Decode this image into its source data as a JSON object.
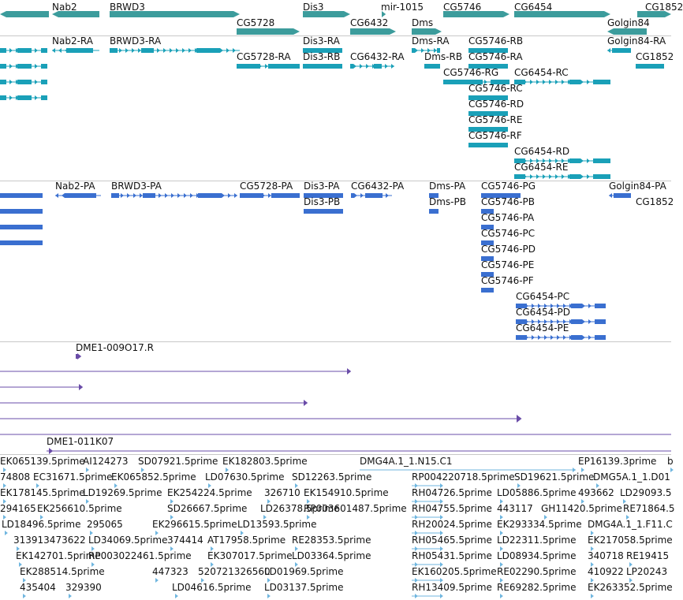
{
  "colors": {
    "gene": "#3c9c9c",
    "transcript": "#1aa0b8",
    "protein": "#3a6fd0",
    "clone": "#6a4ca8",
    "est": "#6fb6df",
    "separator": "#c8c8c8"
  },
  "genes": [
    "Nab2",
    "BRWD3",
    "Dis3",
    "mir-1015",
    "CG5746",
    "CG6454",
    "CG1852",
    "CG5728",
    "CG6432",
    "Dms",
    "Golgin84"
  ],
  "transcripts": [
    "Nab2-RA",
    "BRWD3-RA",
    "Dis3-RA",
    "Dms-RA",
    "CG5746-RB",
    "Golgin84-RA",
    "CG5728-RA",
    "Dis3-RB",
    "CG6432-RA",
    "Dms-RB",
    "CG5746-RA",
    "CG1852",
    "CG5746-RG",
    "CG6454-RC",
    "CG5746-RC",
    "CG5746-RD",
    "CG5746-RE",
    "CG5746-RF",
    "CG6454-RD",
    "CG6454-RE"
  ],
  "proteins": [
    "Nab2-PA",
    "BRWD3-PA",
    "CG5728-PA",
    "Dis3-PA",
    "CG6432-PA",
    "Dms-PA",
    "CG5746-PG",
    "Golgin84-PA",
    "Dis3-PB",
    "Dms-PB",
    "CG5746-PB",
    "CG1852",
    "CG5746-PA",
    "CG5746-PC",
    "CG5746-PD",
    "CG5746-PE",
    "CG5746-PF",
    "CG6454-PC",
    "CG6454-PD",
    "CG6454-PE"
  ],
  "clones": [
    "DME1-009O17.R",
    "DME1-011K07"
  ],
  "ests": [
    [
      "EK065139.5prime",
      "AI124273",
      "SD07921.5prime",
      "EK182803.5prime",
      "DMG4A.1_1.N15.C1",
      "EP16139.3prime",
      "b"
    ],
    [
      "74808",
      "EC31671.5prime",
      "EK065852.5prime",
      "LD07630.5prime",
      "SD12263.5prime",
      "RP004220718.5prime",
      "SD19621.5prime",
      "DMG5A.1_1.D01"
    ],
    [
      "EK178145.5prime",
      "LD19269.5prime",
      "EK254224.5prime",
      "326710",
      "EK154910.5prime",
      "RH04726.5prime",
      "LD05886.5prime",
      "493662",
      "LD29093.5"
    ],
    [
      "294165",
      "EK256610.5prime",
      "SD26667.5prime",
      "LD26378.5prime",
      "RP003601487.5prime",
      "RH04755.5prime",
      "443117",
      "GH11420.5prime",
      "RE71864.5"
    ],
    [
      "LD18496.5prime",
      "295065",
      "EK296615.5prime",
      "LD13593.5prime",
      "RH20024.5prime",
      "EK293334.5prime",
      "DMG4A.1_1.F11.C"
    ],
    [
      "313913473622",
      "LD34069.5prime",
      "374414",
      "AT17958.5prime",
      "RE28353.5prime",
      "RH05465.5prime",
      "LD22311.5prime",
      "EK217058.5prime"
    ],
    [
      "EK142701.5prime",
      "RP003022461.5prime",
      "EK307017.5prime",
      "LD03364.5prime",
      "RH05431.5prime",
      "LD08934.5prime",
      "340718",
      "RE19415"
    ],
    [
      "EK288514.5prime",
      "447323",
      "520721326560",
      "LD01969.5prime",
      "EK160205.5prime",
      "RE02290.5prime",
      "410922",
      "LP20243"
    ],
    [
      "435404",
      "329390",
      "LD04616.5prime",
      "LD03137.5prime",
      "RH13409.5prime",
      "RE69282.5prime",
      "EK263352.5prime"
    ]
  ]
}
